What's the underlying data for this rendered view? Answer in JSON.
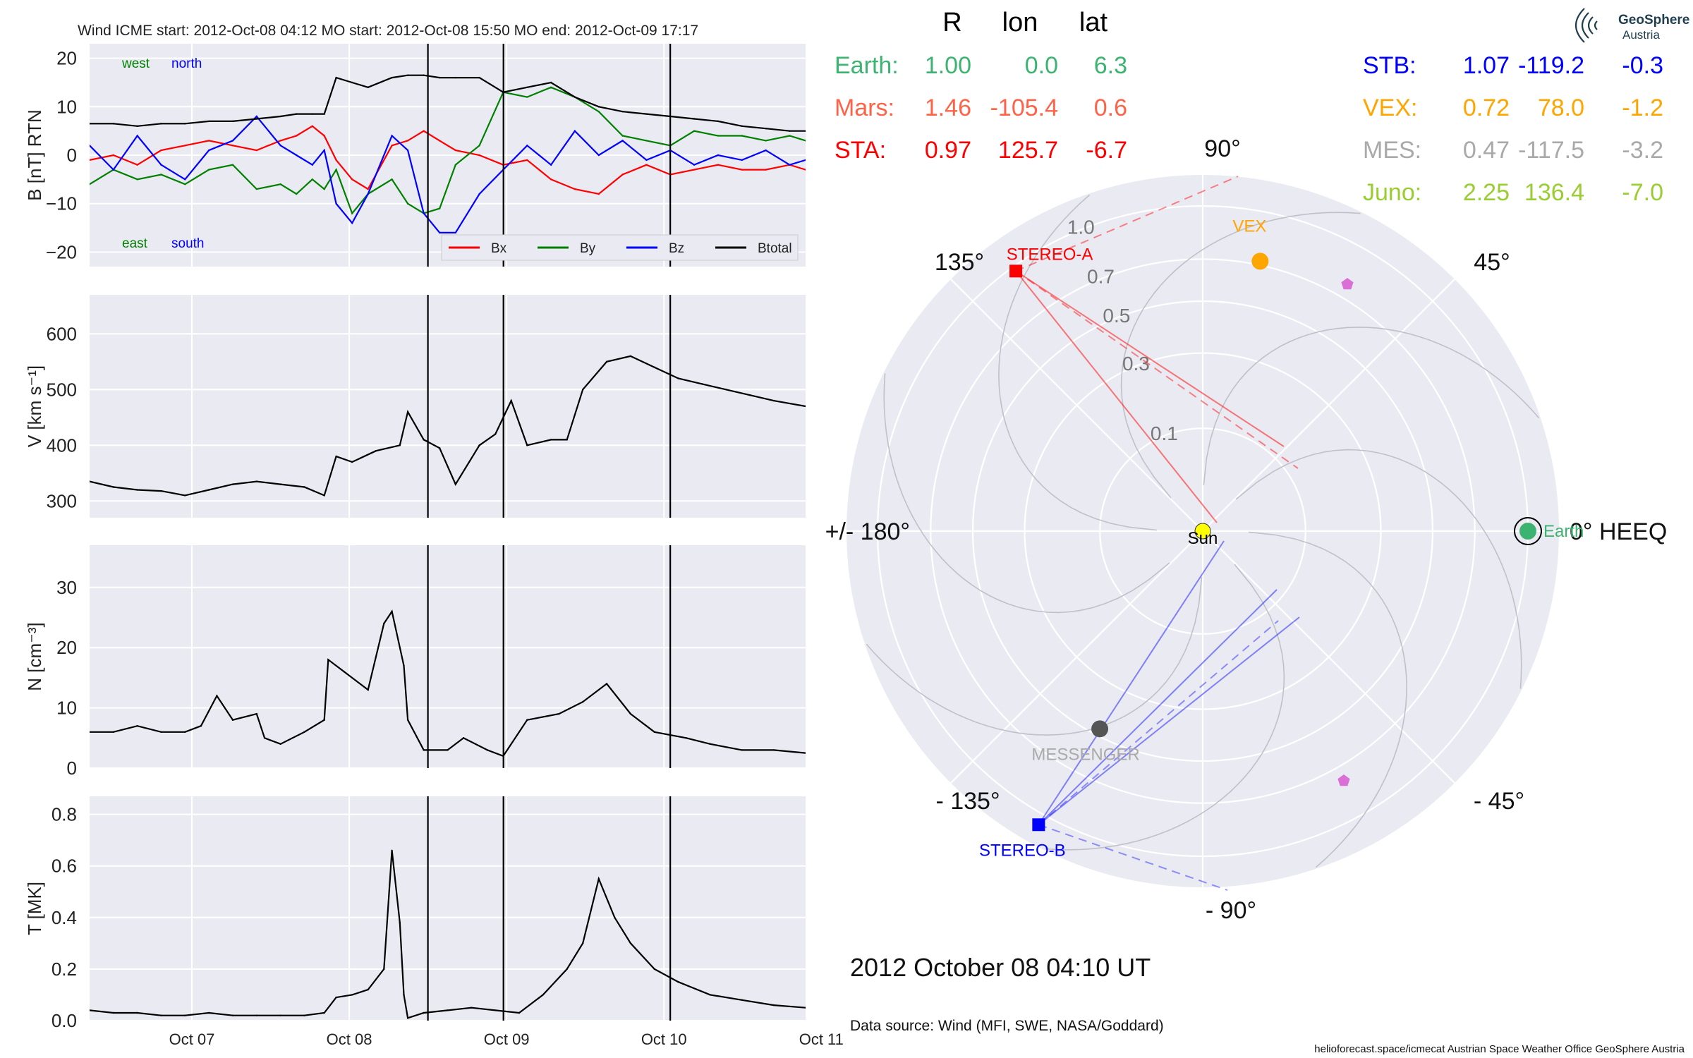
{
  "header": {
    "title": "Wind    ICME start: 2012-Oct-08 04:12   MO start: 2012-Oct-08 15:50   MO end: 2012-Oct-09 17:17"
  },
  "logo": {
    "name": "GeoSphere",
    "sub": "Austria"
  },
  "chart_data": [
    {
      "type": "line",
      "panel": "magnetic field",
      "ylabel": "B [nT] RTN",
      "ylim": [
        -23,
        23
      ],
      "yticks": [
        -20,
        -10,
        0,
        10,
        20
      ],
      "ytick_labels": [
        "−20",
        "−10",
        "0",
        "10",
        "20"
      ],
      "annotations": {
        "west": "west",
        "north": "north",
        "east": "east",
        "south": "south"
      },
      "legend": {
        "placement": "lower-right",
        "entries": [
          "Bx",
          "By",
          "Bz",
          "Btotal"
        ]
      },
      "series": [
        {
          "name": "Bx",
          "color": "#ff0000",
          "x": [
            0,
            0.3,
            0.6,
            0.9,
            1.2,
            1.5,
            1.8,
            2.1,
            2.4,
            2.6,
            2.8,
            2.95,
            3.1,
            3.3,
            3.5,
            3.8,
            4.0,
            4.2,
            4.4,
            4.6,
            4.9,
            5.2,
            5.5,
            5.8,
            6.1,
            6.4,
            6.7,
            7.0,
            7.3,
            7.6,
            7.9,
            8.2,
            8.5,
            8.8,
            9.0
          ],
          "y": [
            -1,
            0,
            -2,
            1,
            2,
            3,
            2,
            1,
            3,
            4,
            6,
            4,
            -1,
            -5,
            -7,
            2,
            3,
            5,
            3,
            1,
            0,
            -2,
            -1,
            -5,
            -7,
            -8,
            -4,
            -2,
            -4,
            -3,
            -2,
            -3,
            -3,
            -2,
            -3
          ]
        },
        {
          "name": "By",
          "color": "#008000",
          "x": [
            0,
            0.3,
            0.6,
            0.9,
            1.2,
            1.5,
            1.8,
            2.1,
            2.4,
            2.6,
            2.8,
            2.95,
            3.1,
            3.3,
            3.5,
            3.8,
            4.0,
            4.2,
            4.4,
            4.6,
            4.9,
            5.2,
            5.5,
            5.8,
            6.1,
            6.4,
            6.7,
            7.0,
            7.3,
            7.6,
            7.9,
            8.2,
            8.5,
            8.8,
            9.0
          ],
          "y": [
            -6,
            -3,
            -5,
            -4,
            -6,
            -3,
            -2,
            -7,
            -6,
            -8,
            -5,
            -7,
            -3,
            -12,
            -8,
            -5,
            -10,
            -12,
            -11,
            -2,
            2,
            13,
            12,
            14,
            12,
            9,
            4,
            3,
            2,
            5,
            4,
            4,
            3,
            4,
            3
          ]
        },
        {
          "name": "Bz",
          "color": "#0000ff",
          "x": [
            0,
            0.3,
            0.6,
            0.9,
            1.2,
            1.5,
            1.8,
            2.1,
            2.4,
            2.6,
            2.8,
            2.95,
            3.1,
            3.3,
            3.5,
            3.8,
            4.0,
            4.2,
            4.4,
            4.6,
            4.9,
            5.2,
            5.5,
            5.8,
            6.1,
            6.4,
            6.7,
            7.0,
            7.3,
            7.6,
            7.9,
            8.2,
            8.5,
            8.8,
            9.0
          ],
          "y": [
            2,
            -3,
            4,
            -2,
            -5,
            1,
            3,
            8,
            2,
            0,
            -2,
            1,
            -10,
            -14,
            -8,
            4,
            1,
            -12,
            -16,
            -16,
            -8,
            -3,
            2,
            -2,
            5,
            0,
            3,
            -1,
            1,
            -2,
            0,
            -1,
            1,
            -2,
            -1
          ]
        },
        {
          "name": "Btotal",
          "color": "#000000",
          "x": [
            0,
            0.3,
            0.6,
            0.9,
            1.2,
            1.5,
            1.8,
            2.1,
            2.4,
            2.6,
            2.8,
            2.95,
            3.1,
            3.3,
            3.5,
            3.8,
            4.0,
            4.2,
            4.4,
            4.6,
            4.9,
            5.2,
            5.5,
            5.8,
            6.1,
            6.4,
            6.7,
            7.0,
            7.3,
            7.6,
            7.9,
            8.2,
            8.5,
            8.8,
            9.0
          ],
          "y": [
            6.5,
            6.5,
            6,
            6.5,
            6.5,
            7,
            7,
            7.5,
            8,
            8.5,
            8.5,
            8.5,
            16,
            15,
            14,
            16,
            16.5,
            16.5,
            16,
            16,
            16,
            13,
            14,
            15,
            12,
            10,
            9,
            8.5,
            8,
            7.5,
            7,
            6,
            5.5,
            5,
            5
          ]
        }
      ]
    },
    {
      "type": "line",
      "panel": "speed",
      "ylabel": "V [km s⁻¹]",
      "ylim": [
        270,
        670
      ],
      "yticks": [
        300,
        400,
        500,
        600
      ],
      "ytick_labels": [
        "300",
        "400",
        "500",
        "600"
      ],
      "series": [
        {
          "name": "V",
          "color": "#000000",
          "x": [
            0,
            0.3,
            0.6,
            0.9,
            1.2,
            1.5,
            1.8,
            2.1,
            2.4,
            2.7,
            2.95,
            3.1,
            3.3,
            3.6,
            3.9,
            4.0,
            4.2,
            4.4,
            4.6,
            4.9,
            5.1,
            5.3,
            5.5,
            5.8,
            6.0,
            6.2,
            6.5,
            6.8,
            7.1,
            7.4,
            7.7,
            8.0,
            8.3,
            8.6,
            9.0
          ],
          "y": [
            335,
            325,
            320,
            318,
            310,
            320,
            330,
            335,
            330,
            325,
            310,
            380,
            370,
            390,
            400,
            460,
            410,
            395,
            330,
            400,
            420,
            480,
            400,
            410,
            410,
            500,
            550,
            560,
            540,
            520,
            510,
            500,
            490,
            480,
            470
          ]
        }
      ]
    },
    {
      "type": "line",
      "panel": "density",
      "ylabel": "N [cm⁻³]",
      "ylim": [
        0,
        37
      ],
      "yticks": [
        0,
        10,
        20,
        30
      ],
      "ytick_labels": [
        "0",
        "10",
        "20",
        "30"
      ],
      "series": [
        {
          "name": "N",
          "color": "#000000",
          "x": [
            0,
            0.3,
            0.6,
            0.9,
            1.2,
            1.4,
            1.6,
            1.8,
            2.1,
            2.2,
            2.4,
            2.7,
            2.95,
            3.0,
            3.2,
            3.5,
            3.7,
            3.8,
            3.95,
            4.0,
            4.2,
            4.5,
            4.7,
            5.0,
            5.2,
            5.5,
            5.9,
            6.2,
            6.5,
            6.8,
            7.1,
            7.5,
            7.8,
            8.2,
            8.6,
            9.0
          ],
          "y": [
            6,
            6,
            7,
            6,
            6,
            7,
            12,
            8,
            9,
            5,
            4,
            6,
            8,
            18,
            16,
            13,
            24,
            26,
            17,
            8,
            3,
            3,
            5,
            3,
            2,
            8,
            9,
            11,
            14,
            9,
            6,
            5,
            4,
            3,
            3,
            2.5
          ]
        }
      ]
    },
    {
      "type": "line",
      "panel": "temperature",
      "ylabel": "T [MK]",
      "xlabel": "",
      "ylim": [
        0,
        0.87
      ],
      "yticks": [
        0.0,
        0.2,
        0.4,
        0.6,
        0.8
      ],
      "ytick_labels": [
        "0.0",
        "0.2",
        "0.4",
        "0.6",
        "0.8"
      ],
      "categories": [
        "Oct 07",
        "Oct 08",
        "Oct 09",
        "Oct 10",
        "Oct 11"
      ],
      "series": [
        {
          "name": "T",
          "color": "#000000",
          "x": [
            0,
            0.3,
            0.6,
            0.9,
            1.2,
            1.5,
            1.8,
            2.1,
            2.4,
            2.7,
            2.95,
            3.1,
            3.3,
            3.5,
            3.7,
            3.8,
            3.9,
            3.95,
            4.0,
            4.2,
            4.5,
            4.8,
            5.1,
            5.4,
            5.7,
            6.0,
            6.2,
            6.4,
            6.6,
            6.8,
            7.1,
            7.4,
            7.8,
            8.2,
            8.6,
            9.0
          ],
          "y": [
            0.04,
            0.03,
            0.03,
            0.02,
            0.02,
            0.03,
            0.02,
            0.02,
            0.02,
            0.02,
            0.03,
            0.09,
            0.1,
            0.12,
            0.2,
            0.66,
            0.38,
            0.1,
            0.01,
            0.03,
            0.04,
            0.05,
            0.04,
            0.03,
            0.1,
            0.2,
            0.3,
            0.55,
            0.4,
            0.3,
            0.2,
            0.15,
            0.1,
            0.08,
            0.06,
            0.05
          ]
        }
      ]
    }
  ],
  "time_axis": {
    "tick_labels": [
      "Oct 07",
      "Oct 08",
      "Oct 09",
      "Oct 10",
      "Oct 11"
    ],
    "tick_values_days": [
      0.65,
      1.65,
      2.65,
      3.65,
      4.65
    ],
    "boundaries": [
      {
        "label": "ICME start",
        "day": 2.15
      },
      {
        "label": "MO start",
        "day": 2.63
      },
      {
        "label": "MO end",
        "day": 3.69
      }
    ],
    "range_days": [
      0,
      4.55
    ]
  },
  "polar": {
    "angle_labels": [
      {
        "text": "0° HEEQ",
        "angle": 0
      },
      {
        "text": "45°",
        "angle": 45
      },
      {
        "text": "90°",
        "angle": 90
      },
      {
        "text": "135°",
        "angle": 135
      },
      {
        "text": "+/- 180°",
        "angle": 180
      },
      {
        "text": "- 135°",
        "angle": -135
      },
      {
        "text": "- 90°",
        "angle": -90
      },
      {
        "text": "- 45°",
        "angle": -45
      }
    ],
    "r_labels": [
      "0.1",
      "0.3",
      "0.5",
      "0.7",
      "1.0"
    ],
    "objects": [
      {
        "name": "Sun",
        "r": 0.0,
        "lon": 0,
        "color": "#ffff00"
      },
      {
        "name": "Earth",
        "r": 1.0,
        "lon": 0.0,
        "color": "#3cb371"
      },
      {
        "name": "STEREO-A",
        "r": 0.97,
        "lon": 125.7,
        "color": "#ff0000"
      },
      {
        "name": "STEREO-B",
        "r": 1.07,
        "lon": -119.2,
        "color": "#0000ff"
      },
      {
        "name": "VEX",
        "r": 0.72,
        "lon": 78.0,
        "color": "#ffa500"
      },
      {
        "name": "MESSENGER",
        "r": 0.47,
        "lon": -117.5,
        "color": "#555555",
        "label_color": "#aaaaaa"
      },
      {
        "name": "Mars",
        "r": 1.46,
        "lon": -105.4,
        "color": "#ff7f50"
      },
      {
        "name": "Juno",
        "r": 2.25,
        "lon": 136.4,
        "color": "#9acd32"
      }
    ]
  },
  "position_table": {
    "headers": {
      "r": "R",
      "lon": "lon",
      "lat": "lat"
    },
    "left": [
      {
        "name": "Earth:",
        "r": "1.00",
        "lon": "0.0",
        "lat": "6.3",
        "color": "#3cb371"
      },
      {
        "name": "Mars:",
        "r": "1.46",
        "lon": "-105.4",
        "lat": "0.6",
        "color": "#ff6347"
      },
      {
        "name": "STA:",
        "r": "0.97",
        "lon": "125.7",
        "lat": "-6.7",
        "color": "#ff0000"
      }
    ],
    "right": [
      {
        "name": "STB:",
        "r": "1.07",
        "lon": "-119.2",
        "lat": "-0.3",
        "color": "#0000ff"
      },
      {
        "name": "VEX:",
        "r": "0.72",
        "lon": "78.0",
        "lat": "-1.2",
        "color": "#ffa500"
      },
      {
        "name": "MES:",
        "r": "0.47",
        "lon": "-117.5",
        "lat": "-3.2",
        "color": "#a9a9a9"
      },
      {
        "name": "Juno:",
        "r": "2.25",
        "lon": "136.4",
        "lat": "-7.0",
        "color": "#9acd32"
      }
    ]
  },
  "footer": {
    "timestamp": "2012 October 08  04:10 UT",
    "source": "Data source: Wind (MFI, SWE, NASA/Goddard)",
    "credits": "helioforecast.space/icmecat   Austrian Space Weather Office   GeoSphere Austria"
  }
}
